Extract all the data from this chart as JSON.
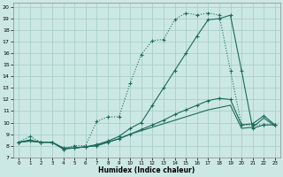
{
  "xlabel": "Humidex (Indice chaleur)",
  "bg_color": "#cce8e4",
  "grid_color": "#aacfcb",
  "line_color": "#1a6b5a",
  "xlim": [
    -0.5,
    23.5
  ],
  "ylim": [
    7,
    20.4
  ],
  "xticks": [
    0,
    1,
    2,
    3,
    4,
    5,
    6,
    7,
    8,
    9,
    10,
    11,
    12,
    13,
    14,
    15,
    16,
    17,
    18,
    19,
    20,
    21,
    22,
    23
  ],
  "yticks": [
    7,
    8,
    9,
    10,
    11,
    12,
    13,
    14,
    15,
    16,
    17,
    18,
    19,
    20
  ],
  "line1_x": [
    0,
    1,
    2,
    3,
    4,
    5,
    6,
    7,
    8,
    9,
    10,
    11,
    12,
    13,
    14,
    15,
    16,
    17,
    18,
    19,
    20,
    21,
    22,
    23
  ],
  "line1_y": [
    8.3,
    8.8,
    8.3,
    8.3,
    7.7,
    8.0,
    8.0,
    10.1,
    10.5,
    10.5,
    13.4,
    15.9,
    17.1,
    17.2,
    18.9,
    19.5,
    19.3,
    19.5,
    19.3,
    14.5,
    9.8,
    9.8,
    9.8,
    9.8
  ],
  "line2_x": [
    0,
    1,
    2,
    3,
    4,
    5,
    6,
    7,
    8,
    9,
    10,
    11,
    12,
    13,
    14,
    15,
    16,
    17,
    18,
    19,
    20,
    21,
    22,
    23
  ],
  "line2_y": [
    8.3,
    8.5,
    8.3,
    8.3,
    7.7,
    7.8,
    7.9,
    8.1,
    8.4,
    8.8,
    9.5,
    10.0,
    11.5,
    13.0,
    14.5,
    16.0,
    17.5,
    18.9,
    19.0,
    19.3,
    14.5,
    9.5,
    9.8,
    9.8
  ],
  "line3_x": [
    0,
    1,
    2,
    3,
    4,
    5,
    6,
    7,
    8,
    9,
    10,
    11,
    12,
    13,
    14,
    15,
    16,
    17,
    18,
    19,
    20,
    21,
    22,
    23
  ],
  "line3_y": [
    8.3,
    8.4,
    8.3,
    8.3,
    7.8,
    7.8,
    7.9,
    8.0,
    8.3,
    8.6,
    9.0,
    9.4,
    9.8,
    10.2,
    10.7,
    11.1,
    11.5,
    11.9,
    12.1,
    12.0,
    9.8,
    9.9,
    10.6,
    9.8
  ],
  "line4_x": [
    0,
    1,
    2,
    3,
    4,
    5,
    6,
    7,
    8,
    9,
    10,
    11,
    12,
    13,
    14,
    15,
    16,
    17,
    18,
    19,
    20,
    21,
    22,
    23
  ],
  "line4_y": [
    8.3,
    8.4,
    8.3,
    8.3,
    7.8,
    7.8,
    7.9,
    8.0,
    8.3,
    8.6,
    9.0,
    9.3,
    9.6,
    9.9,
    10.2,
    10.5,
    10.8,
    11.1,
    11.3,
    11.5,
    9.5,
    9.6,
    10.4,
    9.7
  ]
}
